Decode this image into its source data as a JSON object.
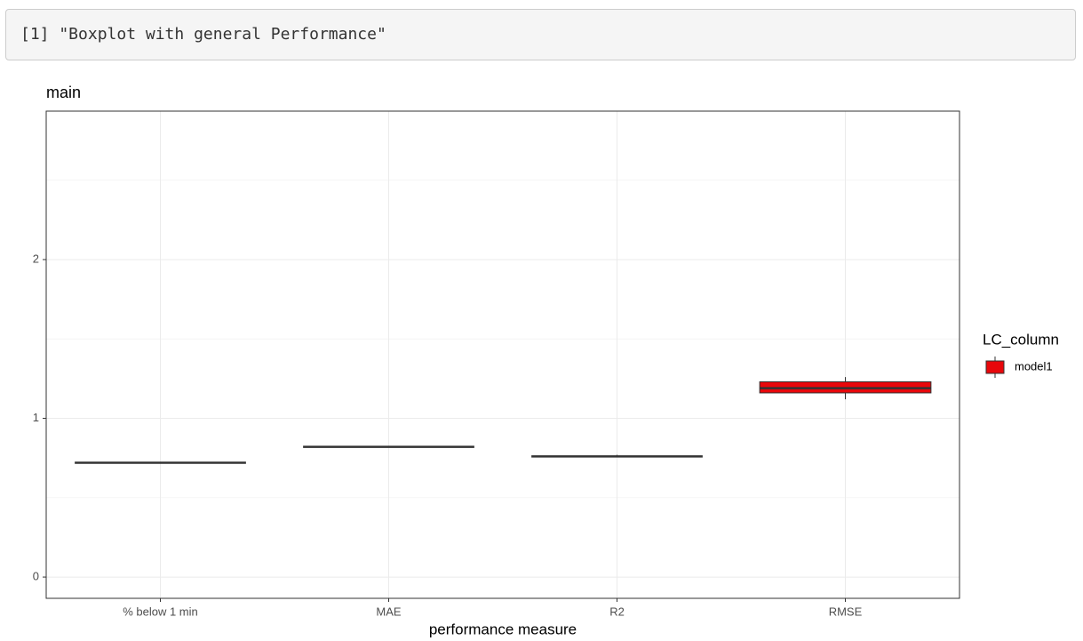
{
  "console_output": "[1] \"Boxplot with general Performance\"",
  "chart_data": {
    "type": "box",
    "title": "main",
    "x_label": "performance measure",
    "categories": [
      "% below 1 min",
      "MAE",
      "R2",
      "RMSE"
    ],
    "legend_title": "LC_column",
    "legend_position": "right",
    "series": [
      {
        "name": "model1",
        "color": "#e8070b",
        "values": [
          {
            "min": 0.72,
            "q1": 0.72,
            "median": 0.72,
            "q3": 0.72,
            "max": 0.72
          },
          {
            "min": 0.82,
            "q1": 0.82,
            "median": 0.82,
            "q3": 0.82,
            "max": 0.82
          },
          {
            "min": 0.76,
            "q1": 0.76,
            "median": 0.76,
            "q3": 0.76,
            "max": 0.77
          },
          {
            "min": 1.12,
            "q1": 1.16,
            "median": 1.19,
            "q3": 1.23,
            "max": 1.26
          }
        ]
      }
    ],
    "ylim": [
      -0.134,
      2.935
    ],
    "yticks": [
      0,
      1,
      2
    ],
    "grid": true
  }
}
